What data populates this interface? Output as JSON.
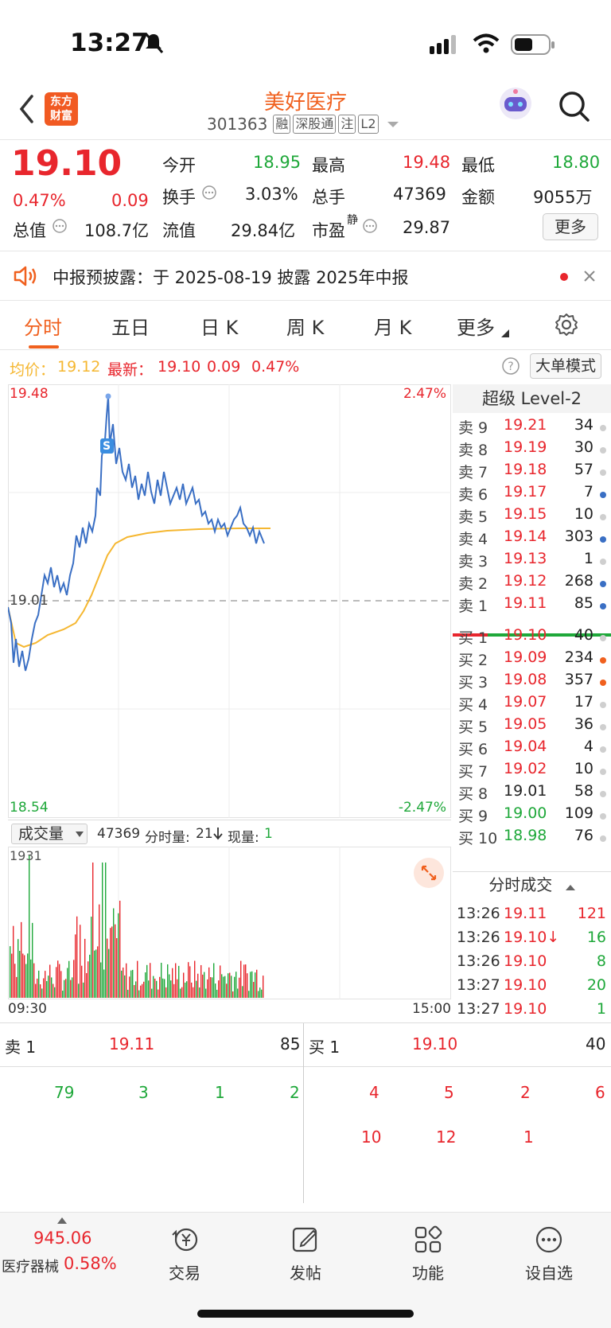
{
  "status": {
    "time": "13:27"
  },
  "header": {
    "logo": [
      "东方",
      "财富"
    ],
    "name": "美好医疗",
    "code": "301363",
    "tags": [
      "融",
      "深股通",
      "注",
      "L2"
    ]
  },
  "quote": {
    "price": "19.10",
    "change_pct": "0.47%",
    "change": "0.09",
    "open_label": "今开",
    "open": "18.95",
    "high_label": "最高",
    "high": "19.48",
    "low_label": "最低",
    "low": "18.80",
    "turnover_label": "换手",
    "turnover": "3.03%",
    "volume_label": "总手",
    "volume": "47369",
    "amount_label": "金额",
    "amount": "9055万",
    "mktcap_label": "总值",
    "mktcap": "108.7亿",
    "float_label": "流值",
    "float": "29.84亿",
    "pe_label": "市盈",
    "pe_sup": "静",
    "pe": "29.87",
    "more": "更多"
  },
  "notice": {
    "text": "中报预披露：于 2025-08-19 披露 2025年中报"
  },
  "tabs": [
    "分时",
    "五日",
    "日 K",
    "周 K",
    "月 K",
    "更多"
  ],
  "avgline": {
    "avg_label": "均价：",
    "avg": "19.12",
    "last_label": "最新：",
    "last": "19.10",
    "chg": "0.09",
    "pct": "0.47%",
    "bigorder": "大单模式"
  },
  "chart": {
    "top_price": "19.48",
    "bottom_price": "18.54",
    "mid_price": "19.01",
    "top_pct": "2.47%",
    "bottom_pct": "-2.47%",
    "marker": "S"
  },
  "volume": {
    "selector": "成交量",
    "total": "47369",
    "bar_label": "分时量:",
    "bar_value": "21",
    "now_label": "现量:",
    "now_value": "1",
    "max": "1931",
    "start_time": "09:30",
    "end_time": "15:00"
  },
  "book": {
    "title": "超级 Level-2",
    "asks": [
      {
        "label": "卖 9",
        "price": "19.21",
        "vol": "34"
      },
      {
        "label": "卖 8",
        "price": "19.19",
        "vol": "30"
      },
      {
        "label": "卖 7",
        "price": "19.18",
        "vol": "57"
      },
      {
        "label": "卖 6",
        "price": "19.17",
        "vol": "7"
      },
      {
        "label": "卖 5",
        "price": "19.15",
        "vol": "10"
      },
      {
        "label": "卖 4",
        "price": "19.14",
        "vol": "303"
      },
      {
        "label": "卖 3",
        "price": "19.13",
        "vol": "1"
      },
      {
        "label": "卖 2",
        "price": "19.12",
        "vol": "268"
      },
      {
        "label": "卖 1",
        "price": "19.11",
        "vol": "85"
      }
    ],
    "bids": [
      {
        "label": "买 1",
        "price": "19.10",
        "vol": "40"
      },
      {
        "label": "买 2",
        "price": "19.09",
        "vol": "234"
      },
      {
        "label": "买 3",
        "price": "19.08",
        "vol": "357"
      },
      {
        "label": "买 4",
        "price": "19.07",
        "vol": "17"
      },
      {
        "label": "买 5",
        "price": "19.05",
        "vol": "36"
      },
      {
        "label": "买 6",
        "price": "19.04",
        "vol": "4"
      },
      {
        "label": "买 7",
        "price": "19.02",
        "vol": "10"
      },
      {
        "label": "买 8",
        "price": "19.01",
        "vol": "58"
      },
      {
        "label": "买 9",
        "price": "19.00",
        "vol": "109"
      },
      {
        "label": "买 10",
        "price": "18.98",
        "vol": "76"
      }
    ],
    "ask_dots": [
      "gray",
      "gray",
      "gray",
      "blue",
      "gray",
      "blue",
      "gray",
      "blue",
      "blue"
    ],
    "bid_dots": [
      "gray",
      "orange",
      "orange",
      "gray",
      "gray",
      "gray",
      "gray",
      "gray",
      "gray",
      "gray"
    ]
  },
  "ticks": {
    "title": "分时成交",
    "rows": [
      {
        "time": "13:26",
        "price": "19.11",
        "vol": "121"
      },
      {
        "time": "13:26",
        "price": "19.10↓",
        "vol": "16"
      },
      {
        "time": "13:26",
        "price": "19.10",
        "vol": "8"
      },
      {
        "time": "13:27",
        "price": "19.10",
        "vol": "20"
      },
      {
        "time": "13:27",
        "price": "19.10",
        "vol": "1"
      }
    ]
  },
  "level1": {
    "ask_label": "卖 1",
    "ask_price": "19.11",
    "ask_vol": "85",
    "bid_label": "买 1",
    "bid_price": "19.10",
    "bid_vol": "40"
  },
  "queue": {
    "ask": [
      "79",
      "3",
      "1",
      "2"
    ],
    "bid_row1": [
      "4",
      "5",
      "2",
      "6"
    ],
    "bid_row2": [
      "10",
      "12",
      "1"
    ]
  },
  "bottom": {
    "index_value": "945.06",
    "index_name": "医疗器械",
    "index_pct": "0.58%",
    "nav": [
      "交易",
      "发帖",
      "功能",
      "设自选"
    ]
  },
  "colors": {
    "up": "#e8262d",
    "down": "#1fa83a",
    "accent": "#f0601e",
    "price_line": "#3a6fc4",
    "avg_line": "#f5b731"
  }
}
